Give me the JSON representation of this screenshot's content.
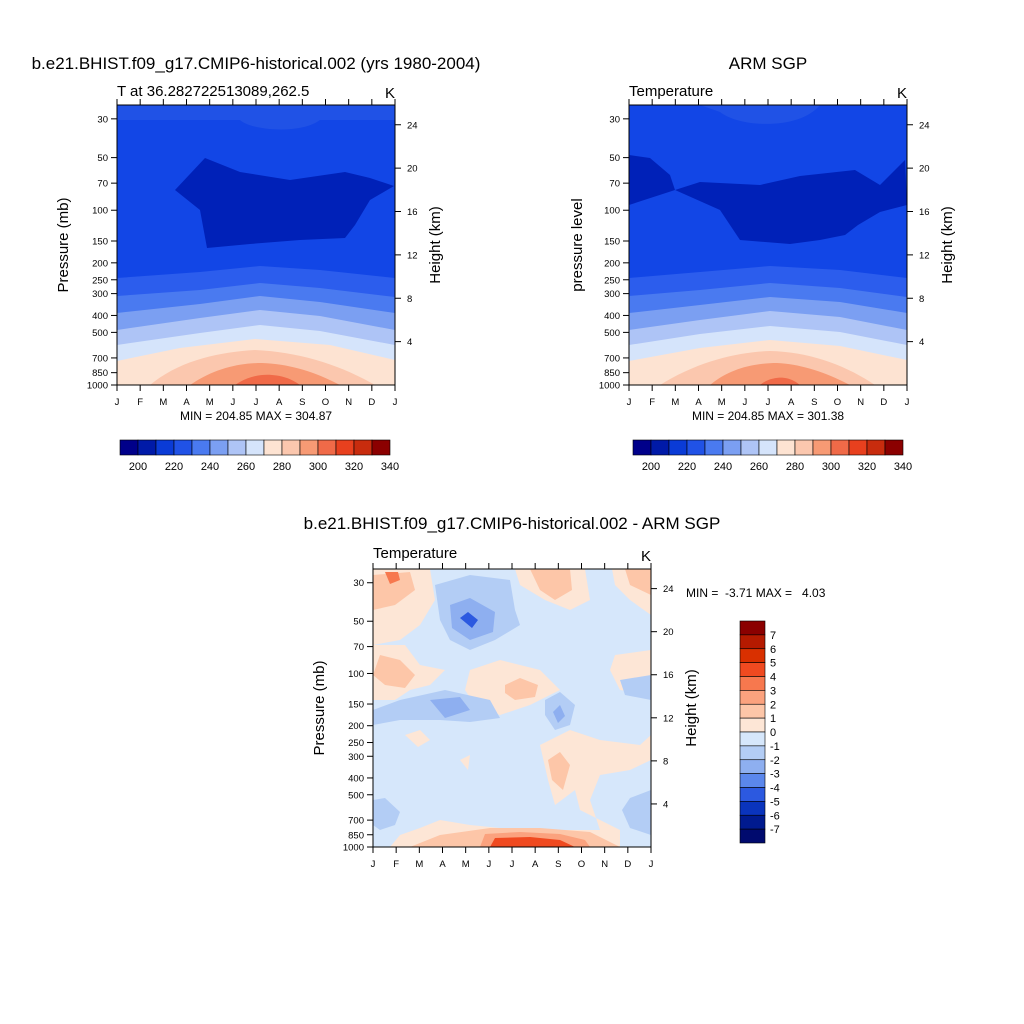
{
  "chart_data": [
    {
      "type": "heatmap",
      "title": "b.e21.BHIST.f09_g17.CMIP6-historical.002 (yrs 1980-2004)",
      "subtitle_left": "T at 36.282722513089,262.5",
      "subtitle_right": "K",
      "xlabel": "",
      "ylabel": "Pressure (mb)",
      "ylabel_right": "Height (km)",
      "x_ticks": [
        "J",
        "F",
        "M",
        "A",
        "M",
        "J",
        "J",
        "A",
        "S",
        "O",
        "N",
        "D",
        "J"
      ],
      "y_ticks": [
        30,
        50,
        70,
        100,
        150,
        200,
        250,
        300,
        400,
        500,
        700,
        850,
        1000
      ],
      "y_right_ticks": [
        24,
        20,
        16,
        12,
        8,
        4
      ],
      "ylim": [
        1000,
        25
      ],
      "y_scale": "log",
      "stats_text": "MIN = 204.85 MAX = 304.87",
      "min": 204.85,
      "max": 304.87,
      "colorbar": {
        "orientation": "horizontal",
        "levels": [
          195,
          200,
          205,
          210,
          215,
          220,
          225,
          230,
          235,
          240,
          245,
          250,
          255,
          260,
          265,
          270,
          275,
          280,
          285,
          290,
          295,
          300,
          305,
          310,
          315,
          320,
          325,
          330,
          335,
          340,
          345
        ],
        "labels": [
          "200",
          "220",
          "240",
          "260",
          "280",
          "300",
          "320",
          "340"
        ]
      }
    },
    {
      "type": "heatmap",
      "title": "ARM SGP",
      "subtitle_left": "Temperature",
      "subtitle_right": "K",
      "xlabel": "",
      "ylabel": "pressure level",
      "ylabel_right": "Height (km)",
      "x_ticks": [
        "J",
        "F",
        "M",
        "A",
        "M",
        "J",
        "J",
        "A",
        "S",
        "O",
        "N",
        "D",
        "J"
      ],
      "y_ticks": [
        30,
        50,
        70,
        100,
        150,
        200,
        250,
        300,
        400,
        500,
        700,
        850,
        1000
      ],
      "y_right_ticks": [
        24,
        20,
        16,
        12,
        8,
        4
      ],
      "ylim": [
        1000,
        25
      ],
      "y_scale": "log",
      "stats_text": "MIN = 204.85 MAX = 301.38",
      "min": 204.85,
      "max": 301.38,
      "colorbar": {
        "orientation": "horizontal",
        "labels": [
          "200",
          "220",
          "240",
          "260",
          "280",
          "300",
          "320",
          "340"
        ]
      }
    },
    {
      "type": "heatmap",
      "title": "b.e21.BHIST.f09_g17.CMIP6-historical.002 - ARM SGP",
      "subtitle_left": "Temperature",
      "subtitle_right": "K",
      "xlabel": "",
      "ylabel": "Pressure (mb)",
      "ylabel_right": "Height (km)",
      "x_ticks": [
        "J",
        "F",
        "M",
        "A",
        "M",
        "J",
        "J",
        "A",
        "S",
        "O",
        "N",
        "D",
        "J"
      ],
      "y_ticks": [
        30,
        50,
        70,
        100,
        150,
        200,
        250,
        300,
        400,
        500,
        700,
        850,
        1000
      ],
      "y_right_ticks": [
        24,
        20,
        16,
        12,
        8,
        4
      ],
      "ylim": [
        1000,
        25
      ],
      "y_scale": "log",
      "stats_text": "MIN =  -3.71 MAX =   4.03",
      "min": -3.71,
      "max": 4.03,
      "colorbar": {
        "orientation": "vertical",
        "labels": [
          "7",
          "6",
          "5",
          "4",
          "3",
          "2",
          "1",
          "0",
          "-1",
          "-2",
          "-3",
          "-4",
          "-5",
          "-6",
          "-7"
        ]
      }
    }
  ],
  "palette": {
    "temperature": [
      "#00008a",
      "#001aa8",
      "#0a3bd6",
      "#2052e6",
      "#4a7af0",
      "#7b9ff2",
      "#aec4f6",
      "#d5e4fb",
      "#fde3d2",
      "#fbc7ae",
      "#f79a74",
      "#f06a48",
      "#e8401e",
      "#c82c0e",
      "#8b0000"
    ],
    "difference": [
      "#8b0000",
      "#b51a00",
      "#d93000",
      "#f04a20",
      "#f7784e",
      "#fba27e",
      "#fdc6a8",
      "#fde6d6",
      "#d6e7fb",
      "#b3cdf5",
      "#8eaff0",
      "#5b87ec",
      "#2c59e0",
      "#0a34bd",
      "#001a8f",
      "#000a6e"
    ]
  }
}
